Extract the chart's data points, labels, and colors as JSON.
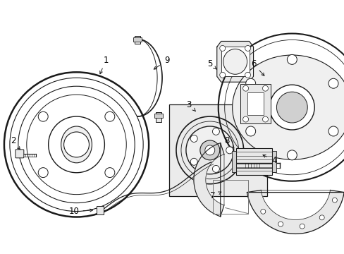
{
  "bg_color": "#ffffff",
  "line_color": "#1a1a1a",
  "gray_fill": "#e8e8e8",
  "light_gray": "#f0f0f0",
  "mid_gray": "#d0d0d0",
  "box_fill": "#ebebeb"
}
